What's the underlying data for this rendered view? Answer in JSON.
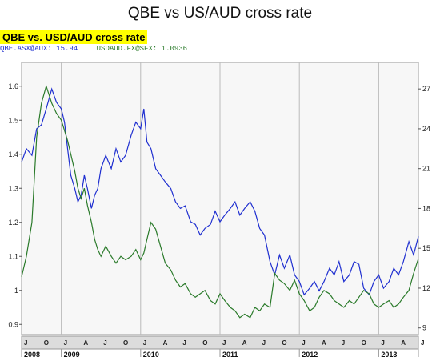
{
  "page_title": "QBE vs US/AUD cross rate",
  "chart_data": {
    "type": "line",
    "title": "QBE vs. USD/AUD cross rate",
    "legend": [
      {
        "label": "QBE.ASX@AUX:",
        "value": "15.94",
        "color": "#1f2fd0"
      },
      {
        "label": "USDAUD.FX@SFX:",
        "value": "1.0936",
        "color": "#2a7a2a"
      }
    ],
    "x_range": [
      2008.5,
      2013.5
    ],
    "y_left": {
      "range": [
        0.87,
        1.67
      ],
      "ticks": [
        "0.9",
        "1",
        "1.1",
        "1.2",
        "1.3",
        "1.4",
        "1.5",
        "1.6"
      ],
      "axis_series": "USDAUD.FX@SFX"
    },
    "y_right": {
      "range": [
        8.5,
        29.0
      ],
      "ticks": [
        "9",
        "12",
        "15",
        "18",
        "21",
        "24",
        "27"
      ],
      "axis_series": "QBE.ASX@AUX"
    },
    "grid": "minimal",
    "month_labels": [
      "J",
      "O",
      "J",
      "A",
      "J",
      "O",
      "J",
      "A",
      "J",
      "O",
      "J",
      "A",
      "J",
      "O",
      "J",
      "A",
      "J",
      "O",
      "J",
      "A",
      "J"
    ],
    "month_positions": [
      2008.5,
      2008.75,
      2009.0,
      2009.25,
      2009.5,
      2009.75,
      2010.0,
      2010.25,
      2010.5,
      2010.75,
      2011.0,
      2011.25,
      2011.5,
      2011.75,
      2012.0,
      2012.25,
      2012.5,
      2012.75,
      2013.0,
      2013.25,
      2013.5
    ],
    "years": [
      {
        "label": "2008",
        "x": 2008.5
      },
      {
        "label": "2009",
        "x": 2009.0
      },
      {
        "label": "2010",
        "x": 2010.0
      },
      {
        "label": "2011",
        "x": 2011.0
      },
      {
        "label": "2012",
        "x": 2012.0
      },
      {
        "label": "2013",
        "x": 2013.0
      }
    ],
    "series": [
      {
        "name": "QBE.ASX@AUX",
        "color": "#1f2fd0",
        "axis": "right",
        "x": [
          2008.5,
          2008.56,
          2008.63,
          2008.69,
          2008.75,
          2008.81,
          2008.88,
          2008.94,
          2009.0,
          2009.04,
          2009.08,
          2009.12,
          2009.17,
          2009.21,
          2009.25,
          2009.29,
          2009.33,
          2009.38,
          2009.42,
          2009.46,
          2009.5,
          2009.56,
          2009.63,
          2009.69,
          2009.75,
          2009.81,
          2009.88,
          2009.94,
          2010.0,
          2010.04,
          2010.08,
          2010.13,
          2010.19,
          2010.25,
          2010.31,
          2010.38,
          2010.44,
          2010.5,
          2010.56,
          2010.63,
          2010.69,
          2010.75,
          2010.81,
          2010.88,
          2010.94,
          2011.0,
          2011.06,
          2011.13,
          2011.19,
          2011.25,
          2011.31,
          2011.38,
          2011.44,
          2011.5,
          2011.56,
          2011.63,
          2011.69,
          2011.75,
          2011.81,
          2011.88,
          2011.94,
          2012.0,
          2012.06,
          2012.13,
          2012.19,
          2012.25,
          2012.31,
          2012.38,
          2012.44,
          2012.5,
          2012.56,
          2012.63,
          2012.69,
          2012.75,
          2012.81,
          2012.88,
          2012.94,
          2013.0,
          2013.06,
          2013.13,
          2013.19,
          2013.25,
          2013.31,
          2013.38,
          2013.44,
          2013.5
        ],
        "y": [
          21.5,
          22.5,
          22.0,
          24.0,
          24.3,
          25.5,
          27.0,
          26.0,
          25.5,
          24.5,
          22.5,
          20.5,
          19.5,
          18.5,
          19.0,
          20.5,
          19.5,
          18.0,
          19.0,
          19.5,
          21.0,
          22.0,
          21.0,
          22.5,
          21.5,
          22.0,
          23.5,
          24.5,
          24.0,
          25.5,
          23.0,
          22.5,
          21.0,
          20.5,
          20.0,
          19.5,
          18.5,
          18.0,
          18.2,
          17.0,
          16.8,
          16.0,
          16.5,
          16.8,
          17.8,
          17.0,
          17.5,
          18.0,
          18.5,
          17.5,
          18.0,
          18.5,
          17.8,
          16.5,
          16.0,
          14.0,
          13.0,
          14.5,
          13.5,
          14.5,
          13.0,
          12.5,
          11.5,
          12.0,
          12.5,
          11.8,
          12.5,
          13.5,
          13.0,
          14.0,
          12.5,
          13.0,
          14.0,
          13.8,
          12.0,
          11.5,
          12.5,
          13.0,
          12.0,
          12.5,
          13.5,
          13.0,
          14.0,
          15.5,
          14.5,
          15.9
        ]
      },
      {
        "name": "USDAUD.FX@SFX",
        "color": "#2a7a2a",
        "axis": "left",
        "x": [
          2008.5,
          2008.56,
          2008.63,
          2008.69,
          2008.75,
          2008.81,
          2008.88,
          2008.94,
          2009.0,
          2009.04,
          2009.08,
          2009.12,
          2009.17,
          2009.21,
          2009.25,
          2009.29,
          2009.33,
          2009.38,
          2009.42,
          2009.46,
          2009.5,
          2009.56,
          2009.63,
          2009.69,
          2009.75,
          2009.81,
          2009.88,
          2009.94,
          2010.0,
          2010.04,
          2010.08,
          2010.13,
          2010.19,
          2010.25,
          2010.31,
          2010.38,
          2010.44,
          2010.5,
          2010.56,
          2010.63,
          2010.69,
          2010.75,
          2010.81,
          2010.88,
          2010.94,
          2011.0,
          2011.06,
          2011.13,
          2011.19,
          2011.25,
          2011.31,
          2011.38,
          2011.44,
          2011.5,
          2011.56,
          2011.63,
          2011.69,
          2011.75,
          2011.81,
          2011.88,
          2011.94,
          2012.0,
          2012.06,
          2012.13,
          2012.19,
          2012.25,
          2012.31,
          2012.38,
          2012.44,
          2012.5,
          2012.56,
          2012.63,
          2012.69,
          2012.75,
          2012.81,
          2012.88,
          2012.94,
          2013.0,
          2013.06,
          2013.13,
          2013.19,
          2013.25,
          2013.31,
          2013.38,
          2013.44,
          2013.5
        ],
        "y": [
          1.04,
          1.1,
          1.2,
          1.45,
          1.55,
          1.6,
          1.55,
          1.52,
          1.5,
          1.47,
          1.44,
          1.4,
          1.35,
          1.3,
          1.27,
          1.3,
          1.25,
          1.2,
          1.15,
          1.12,
          1.1,
          1.13,
          1.1,
          1.08,
          1.1,
          1.09,
          1.1,
          1.12,
          1.09,
          1.11,
          1.15,
          1.2,
          1.18,
          1.13,
          1.08,
          1.06,
          1.03,
          1.01,
          1.02,
          0.99,
          0.98,
          0.99,
          1.0,
          0.97,
          0.96,
          0.99,
          0.97,
          0.95,
          0.94,
          0.92,
          0.93,
          0.92,
          0.95,
          0.94,
          0.96,
          0.95,
          1.05,
          1.03,
          1.02,
          1.0,
          1.03,
          0.99,
          0.97,
          0.94,
          0.95,
          0.98,
          1.0,
          0.99,
          0.97,
          0.96,
          0.95,
          0.97,
          0.96,
          0.98,
          1.0,
          0.99,
          0.96,
          0.95,
          0.96,
          0.97,
          0.95,
          0.96,
          0.98,
          1.0,
          1.05,
          1.0936
        ]
      }
    ]
  }
}
